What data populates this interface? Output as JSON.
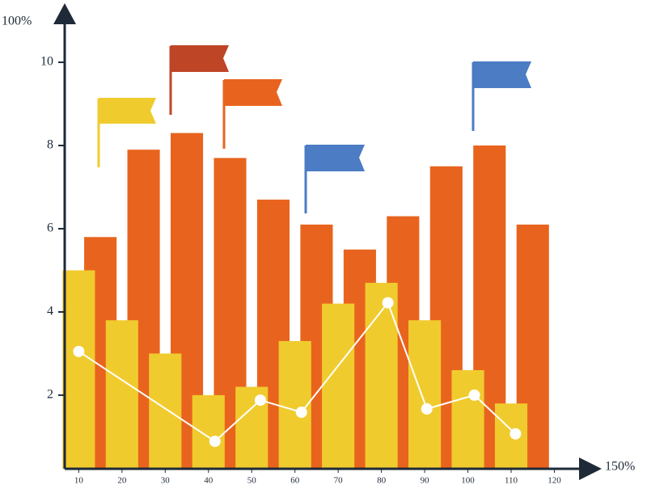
{
  "chart_data": {
    "type": "bar",
    "x_label": "150%",
    "y_label": "100%",
    "series": [
      {
        "type": "bar",
        "color": "#e8641e",
        "x": [
          15,
          25,
          35,
          45,
          55,
          65,
          75,
          85,
          95,
          105,
          115
        ],
        "values": [
          5.8,
          7.9,
          8.3,
          7.7,
          6.7,
          6.1,
          5.5,
          6.3,
          7.5,
          8.0,
          6.1
        ]
      },
      {
        "type": "bar",
        "color": "#f0cb2e",
        "x": [
          10,
          20,
          30,
          40,
          50,
          60,
          70,
          80,
          90,
          100,
          110
        ],
        "values": [
          5.0,
          3.8,
          3.0,
          2.0,
          2.2,
          3.3,
          4.2,
          4.7,
          3.8,
          2.6,
          1.8
        ]
      },
      {
        "type": "line",
        "color": "#ffffff",
        "x": [
          10,
          41.5,
          52,
          61.5,
          81.5,
          90.5,
          101.5,
          111
        ],
        "values": [
          3.05,
          0.89,
          1.88,
          1.59,
          4.22,
          1.67,
          2.0,
          1.07
        ]
      }
    ],
    "xlim": [
      6.75,
      130.2
    ],
    "ylim": [
      0.23,
      11.4
    ],
    "xticks": [
      10,
      20,
      30,
      40,
      50,
      60,
      70,
      80,
      90,
      100,
      110,
      120
    ],
    "yticks": [
      2,
      4,
      6,
      8,
      10
    ]
  }
}
